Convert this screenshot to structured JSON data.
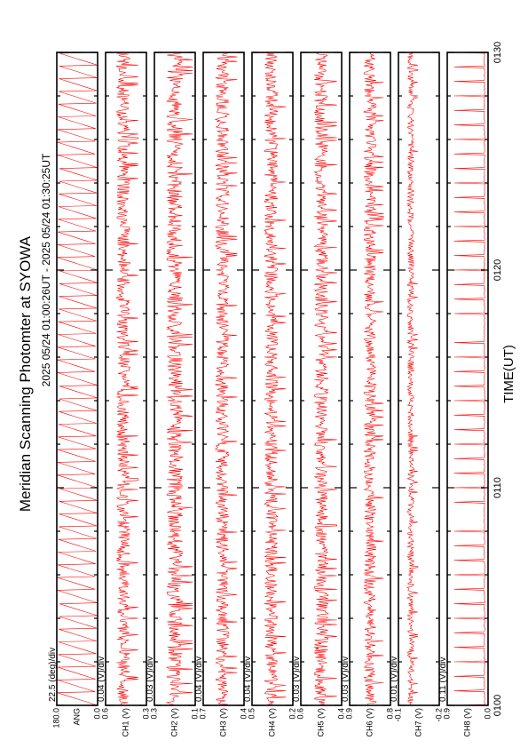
{
  "page": {
    "title": "Meridian Scanning Photomter at SYOWA",
    "time_range": "2025 05/24 01:00:26UT - 2025 05/24 01:30:25UT",
    "xlabel": "TIME(UT)",
    "x_ticks": [
      "0100",
      "0110",
      "0120",
      "0130"
    ]
  },
  "chart_data": {
    "type": "line",
    "title": "Meridian Scanning Photomter at SYOWA",
    "subtitle": "2025 05/24 01:00:26UT - 2025 05/24 01:30:25UT",
    "xlabel": "TIME(UT)",
    "x_tick_labels": [
      "0100",
      "0110",
      "0120",
      "0130"
    ],
    "series_color": "#ff0000",
    "panels": [
      {
        "scale": "22.5 (deg)/div",
        "ticks": [
          "0.0",
          "ANG",
          "180.0"
        ],
        "ylim": [
          0.0,
          180.0
        ],
        "kind": "sawtooth",
        "cycles": 51
      },
      {
        "scale": "0.04 (V)/div",
        "ticks": [
          "0.3",
          "CH1 (V)",
          "0.6"
        ],
        "ylim": [
          0.3,
          0.6
        ],
        "kind": "noise",
        "mean": 0.47,
        "amp": 0.05
      },
      {
        "scale": "0.03 (V)/div",
        "ticks": [
          "0.1",
          "CH2 (V)",
          "0.3"
        ],
        "ylim": [
          0.1,
          0.3
        ],
        "kind": "noise",
        "mean": 0.2,
        "amp": 0.04
      },
      {
        "scale": "0.04 (V)/div",
        "ticks": [
          "0.4",
          "CH3 (V)",
          "0.7"
        ],
        "ylim": [
          0.4,
          0.7
        ],
        "kind": "noise",
        "mean": 0.56,
        "amp": 0.05
      },
      {
        "scale": "0.04 (V)/div",
        "ticks": [
          "0.2",
          "CH4 (V)",
          "0.5"
        ],
        "ylim": [
          0.2,
          0.5
        ],
        "kind": "noise",
        "mean": 0.36,
        "amp": 0.05
      },
      {
        "scale": "0.03 (V)/div",
        "ticks": [
          "0.4",
          "CH5 (V)",
          "0.6"
        ],
        "ylim": [
          0.4,
          0.6
        ],
        "kind": "noise",
        "mean": 0.5,
        "amp": 0.035
      },
      {
        "scale": "0.03 (V)/div",
        "ticks": [
          "0.8",
          "CH6 (V)",
          "0.9"
        ],
        "ylim": [
          0.8,
          0.9
        ],
        "kind": "noise",
        "mean": 0.85,
        "amp": 0.015
      },
      {
        "scale": "0.01 (V)/div",
        "ticks": [
          "-0.2",
          "CH7 (V)",
          "-0.1"
        ],
        "ylim": [
          -0.2,
          -0.1
        ],
        "kind": "noise",
        "mean": -0.13,
        "amp": 0.008
      },
      {
        "scale": "0.11 (V)/div",
        "ticks": [
          "0.0",
          "CH8 (V)",
          "0.9"
        ],
        "ylim": [
          0.0,
          0.9
        ],
        "kind": "spikes",
        "base": 0.08,
        "peak": 0.75,
        "count": 45
      }
    ]
  }
}
